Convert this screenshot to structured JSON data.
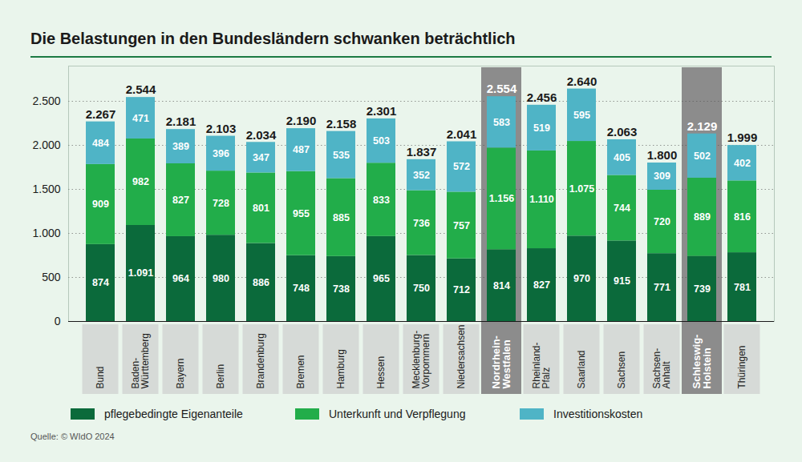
{
  "chart_data": {
    "type": "bar",
    "title": "Die Belastungen in den Bundesländern schwanken beträchtlich",
    "caption": "Quelle: © WIdO 2024",
    "categories": [
      "Bund",
      "Baden-Württemberg",
      "Bayern",
      "Berlin",
      "Brandenburg",
      "Bremen",
      "Hamburg",
      "Hessen",
      "Mecklenburg-Vorpommern",
      "Niedersachsen",
      "Nordrhein-Westfalen",
      "Rheinland-Pfalz",
      "Saarland",
      "Sachsen",
      "Sachsen-Anhalt",
      "Schleswig-Holstein",
      "Thüringen"
    ],
    "stacked": true,
    "data_labels": true,
    "grid": true,
    "legend": "bottom",
    "ylim": [
      0,
      2900
    ],
    "yticks": [
      0,
      500,
      {
        "value": 1000,
        "label": "1.000"
      },
      {
        "value": 1500,
        "label": "1.500"
      },
      {
        "value": 2000,
        "label": "2.000"
      },
      {
        "value": 2500,
        "label": "2.500"
      }
    ],
    "series": [
      {
        "name": "pflegebedingte Eigenanteile",
        "color": "#0b6a3b",
        "values": [
          874,
          1091,
          964,
          980,
          886,
          748,
          738,
          965,
          750,
          712,
          814,
          827,
          970,
          915,
          771,
          739,
          781
        ],
        "value_labels": [
          "874",
          "1.091",
          "964",
          "980",
          "886",
          "748",
          "738",
          "965",
          "750",
          "712",
          "814",
          "827",
          "970",
          "915",
          "771",
          "739",
          "781"
        ]
      },
      {
        "name": "Unterkunft und Verpflegung",
        "color": "#22ad4a",
        "values": [
          909,
          982,
          827,
          728,
          801,
          955,
          885,
          833,
          736,
          757,
          1156,
          1110,
          1075,
          744,
          720,
          889,
          816
        ],
        "value_labels": [
          "909",
          "982",
          "827",
          "728",
          "801",
          "955",
          "885",
          "833",
          "736",
          "757",
          "1.156",
          "1.110",
          "1.075",
          "744",
          "720",
          "889",
          "816"
        ]
      },
      {
        "name": "Investitionskosten",
        "color": "#4fb4c6",
        "values": [
          484,
          471,
          389,
          396,
          347,
          487,
          535,
          503,
          352,
          572,
          583,
          519,
          595,
          405,
          309,
          502,
          402
        ],
        "value_labels": [
          "484",
          "471",
          "389",
          "396",
          "347",
          "487",
          "535",
          "503",
          "352",
          "572",
          "583",
          "519",
          "595",
          "405",
          "309",
          "502",
          "402"
        ]
      }
    ],
    "totals": [
      2267,
      2544,
      2181,
      2103,
      2034,
      2190,
      2158,
      2301,
      1837,
      2041,
      2554,
      2456,
      2640,
      2063,
      1800,
      2129,
      1999
    ],
    "total_labels": [
      "2.267",
      "2.544",
      "2.181",
      "2.103",
      "2.034",
      "2.190",
      "2.158",
      "2.301",
      "1.837",
      "2.041",
      "2.554",
      "2.456",
      "2.640",
      "2.063",
      "1.800",
      "2.129",
      "1.999"
    ]
  }
}
